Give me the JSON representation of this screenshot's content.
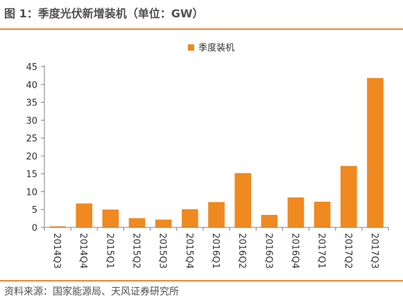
{
  "figure_title": "图 1：季度光伏新增装机（单位：GW）",
  "source_note": "资料来源：国家能源局、天风证券研究所",
  "colors": {
    "accent": "#e8872a",
    "bar": "#f0891f",
    "axis": "#7f7f7f"
  },
  "chart_data": {
    "type": "bar",
    "title": "",
    "xlabel": "",
    "ylabel": "",
    "categories": [
      "2014Q3",
      "2014Q4",
      "2015Q1",
      "2015Q2",
      "2015Q3",
      "2015Q4",
      "2016Q1",
      "2016Q2",
      "2016Q3",
      "2016Q4",
      "2017Q1",
      "2017Q2",
      "2017Q3"
    ],
    "series": [
      {
        "name": "季度装机",
        "values": [
          0.3,
          6.7,
          5.0,
          2.6,
          2.2,
          5.1,
          7.1,
          15.2,
          3.5,
          8.4,
          7.2,
          17.2,
          41.8
        ]
      }
    ],
    "ylim": [
      0,
      45
    ],
    "yticks": [
      0,
      5,
      10,
      15,
      20,
      25,
      30,
      35,
      40,
      45
    ],
    "grid": false,
    "legend_position": "top-center"
  }
}
